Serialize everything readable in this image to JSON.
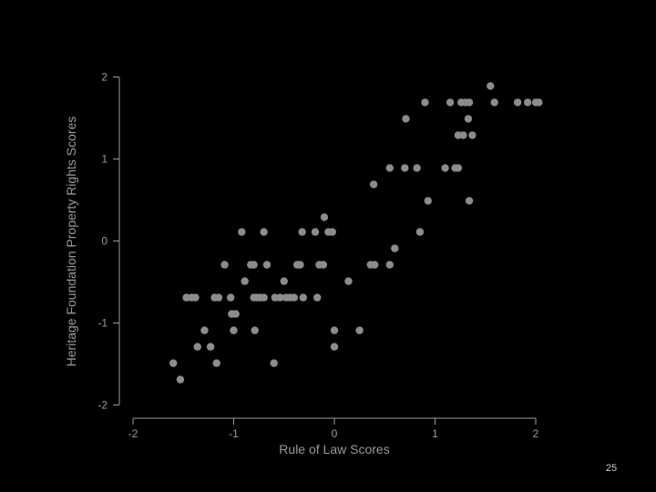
{
  "slide": {
    "number": "25"
  },
  "colors": {
    "background": "#000000",
    "axis": "#9a9a9a",
    "point": "#8c8c8c"
  },
  "chart_data": {
    "type": "scatter",
    "title": "",
    "xlabel": "Rule of Law Scores",
    "ylabel": "Heritage Foundation Property Rights Scores",
    "xlim": [
      -2.05,
      2.05
    ],
    "ylim": [
      -2,
      2
    ],
    "xticks": [
      -2,
      -1,
      0,
      1,
      2
    ],
    "yticks": [
      -2,
      -1,
      0,
      1,
      2
    ],
    "xtick_labels": [
      "-2",
      "-1",
      "0",
      "1",
      "2"
    ],
    "ytick_labels": [
      "-2",
      "-1",
      "0",
      "1",
      "2"
    ],
    "grid": false,
    "points": [
      [
        -1.6,
        -1.49
      ],
      [
        -1.53,
        -1.69
      ],
      [
        -1.47,
        -0.69
      ],
      [
        -1.42,
        -0.69
      ],
      [
        -1.38,
        -0.69
      ],
      [
        -1.36,
        -1.29
      ],
      [
        -1.29,
        -1.09
      ],
      [
        -1.23,
        -1.29
      ],
      [
        -1.19,
        -0.69
      ],
      [
        -1.17,
        -1.49
      ],
      [
        -1.15,
        -0.69
      ],
      [
        -1.09,
        -0.29
      ],
      [
        -1.03,
        -0.69
      ],
      [
        -1.02,
        -0.89
      ],
      [
        -0.98,
        -0.89
      ],
      [
        -1.0,
        -1.09
      ],
      [
        -0.92,
        0.11
      ],
      [
        -0.89,
        -0.49
      ],
      [
        -0.83,
        -0.29
      ],
      [
        -0.8,
        -0.29
      ],
      [
        -0.8,
        -0.69
      ],
      [
        -0.79,
        -1.09
      ],
      [
        -0.77,
        -0.69
      ],
      [
        -0.74,
        -0.69
      ],
      [
        -0.7,
        0.11
      ],
      [
        -0.7,
        -0.69
      ],
      [
        -0.67,
        -0.29
      ],
      [
        -0.6,
        -1.49
      ],
      [
        -0.59,
        -0.69
      ],
      [
        -0.54,
        -0.69
      ],
      [
        -0.5,
        -0.49
      ],
      [
        -0.48,
        -0.69
      ],
      [
        -0.44,
        -0.69
      ],
      [
        -0.4,
        -0.69
      ],
      [
        -0.37,
        -0.29
      ],
      [
        -0.34,
        -0.29
      ],
      [
        -0.31,
        -0.69
      ],
      [
        -0.32,
        0.11
      ],
      [
        -0.19,
        0.11
      ],
      [
        -0.17,
        -0.69
      ],
      [
        -0.15,
        -0.29
      ],
      [
        -0.11,
        -0.29
      ],
      [
        -0.1,
        0.29
      ],
      [
        -0.06,
        0.11
      ],
      [
        -0.02,
        0.11
      ],
      [
        0.0,
        -1.09
      ],
      [
        0.0,
        -1.29
      ],
      [
        0.14,
        -0.49
      ],
      [
        0.25,
        -1.09
      ],
      [
        0.36,
        -0.29
      ],
      [
        0.4,
        -0.29
      ],
      [
        0.39,
        0.69
      ],
      [
        0.55,
        -0.29
      ],
      [
        0.55,
        0.89
      ],
      [
        0.6,
        -0.09
      ],
      [
        0.7,
        0.89
      ],
      [
        0.71,
        1.49
      ],
      [
        0.82,
        0.89
      ],
      [
        0.85,
        0.11
      ],
      [
        0.9,
        1.69
      ],
      [
        0.93,
        0.49
      ],
      [
        1.1,
        0.89
      ],
      [
        1.15,
        1.69
      ],
      [
        1.2,
        0.89
      ],
      [
        1.23,
        0.89
      ],
      [
        1.23,
        1.29
      ],
      [
        1.26,
        1.69
      ],
      [
        1.28,
        1.29
      ],
      [
        1.3,
        1.69
      ],
      [
        1.33,
        1.49
      ],
      [
        1.34,
        0.49
      ],
      [
        1.34,
        1.69
      ],
      [
        1.37,
        1.29
      ],
      [
        1.55,
        1.89
      ],
      [
        1.59,
        1.69
      ],
      [
        1.82,
        1.69
      ],
      [
        1.92,
        1.69
      ],
      [
        2.0,
        1.69
      ],
      [
        2.03,
        1.69
      ]
    ]
  }
}
